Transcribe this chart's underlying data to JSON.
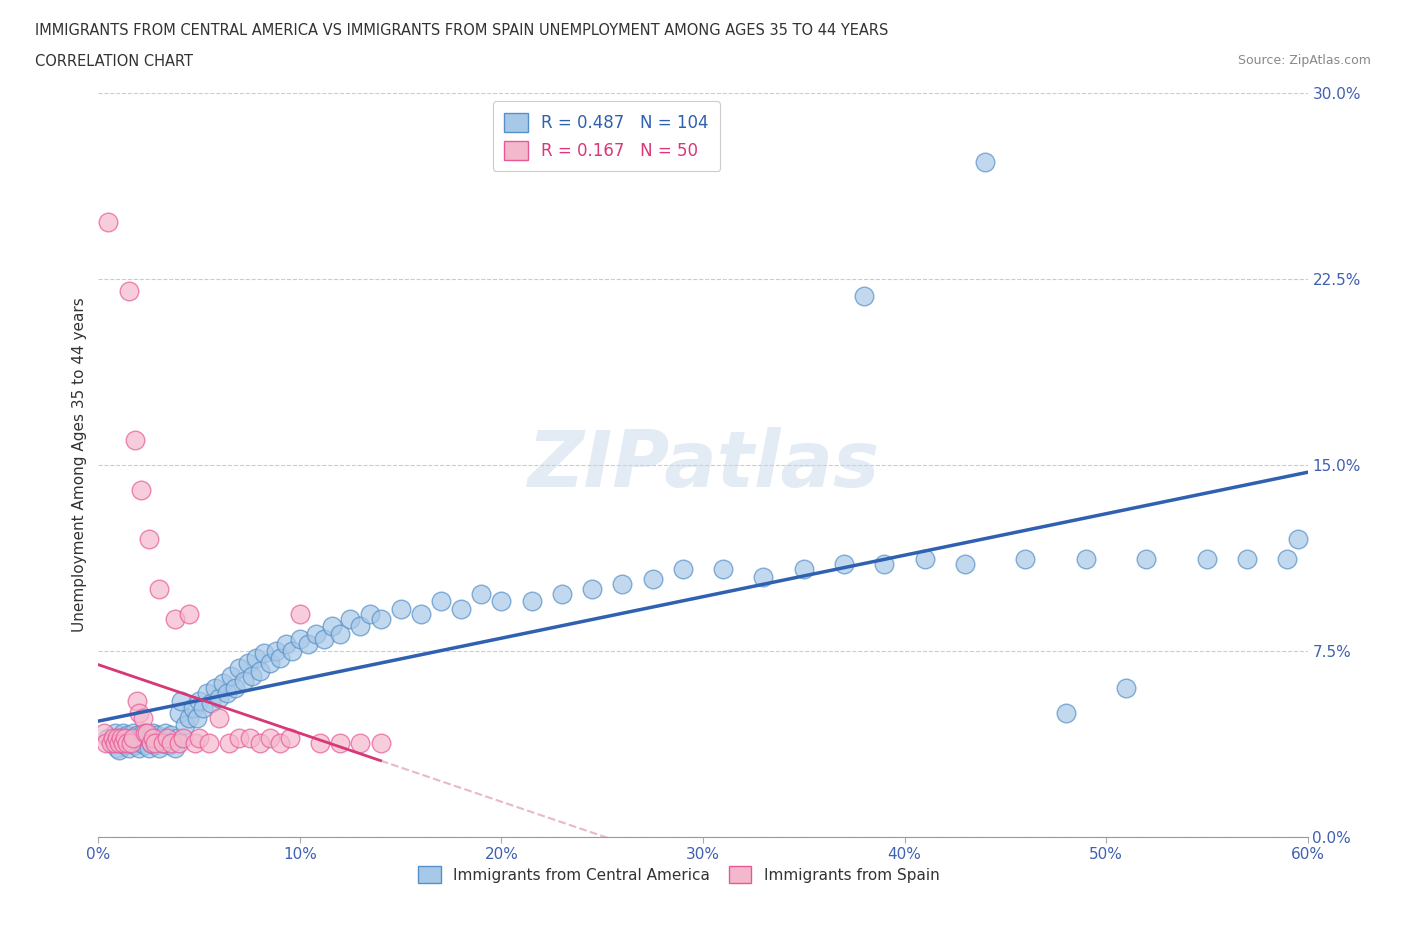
{
  "title_line1": "IMMIGRANTS FROM CENTRAL AMERICA VS IMMIGRANTS FROM SPAIN UNEMPLOYMENT AMONG AGES 35 TO 44 YEARS",
  "title_line2": "CORRELATION CHART",
  "source_text": "Source: ZipAtlas.com",
  "ylabel": "Unemployment Among Ages 35 to 44 years",
  "legend_entry1": "Immigrants from Central America",
  "legend_entry2": "Immigrants from Spain",
  "R1": 0.487,
  "N1": 104,
  "R2": 0.167,
  "N2": 50,
  "color1": "#a8c8e8",
  "color2": "#f4b8cc",
  "edge_color1": "#5590c8",
  "edge_color2": "#e85898",
  "trendline1_color": "#3060b0",
  "trendline2_color": "#d83878",
  "trendline_dashed_color": "#e8b8cc",
  "xlim": [
    0.0,
    0.6
  ],
  "ylim": [
    0.0,
    0.3
  ],
  "xticks": [
    0.0,
    0.1,
    0.2,
    0.3,
    0.4,
    0.5,
    0.6
  ],
  "yticks_right": [
    0.0,
    0.075,
    0.15,
    0.225,
    0.3
  ],
  "watermark": "ZIPatlas",
  "dot_size": 180,
  "blue_x": [
    0.005,
    0.007,
    0.008,
    0.009,
    0.01,
    0.01,
    0.011,
    0.012,
    0.013,
    0.014,
    0.015,
    0.015,
    0.016,
    0.017,
    0.018,
    0.019,
    0.02,
    0.02,
    0.021,
    0.022,
    0.023,
    0.024,
    0.025,
    0.025,
    0.026,
    0.027,
    0.028,
    0.029,
    0.03,
    0.03,
    0.032,
    0.033,
    0.035,
    0.036,
    0.038,
    0.039,
    0.04,
    0.041,
    0.043,
    0.045,
    0.047,
    0.049,
    0.05,
    0.052,
    0.054,
    0.056,
    0.058,
    0.06,
    0.062,
    0.064,
    0.066,
    0.068,
    0.07,
    0.072,
    0.074,
    0.076,
    0.078,
    0.08,
    0.082,
    0.085,
    0.088,
    0.09,
    0.093,
    0.096,
    0.1,
    0.104,
    0.108,
    0.112,
    0.116,
    0.12,
    0.125,
    0.13,
    0.135,
    0.14,
    0.15,
    0.16,
    0.17,
    0.18,
    0.19,
    0.2,
    0.215,
    0.23,
    0.245,
    0.26,
    0.275,
    0.29,
    0.31,
    0.33,
    0.35,
    0.37,
    0.39,
    0.41,
    0.43,
    0.46,
    0.49,
    0.52,
    0.55,
    0.57,
    0.59,
    0.595,
    0.44,
    0.38,
    0.48,
    0.51
  ],
  "blue_y": [
    0.04,
    0.038,
    0.042,
    0.036,
    0.04,
    0.035,
    0.038,
    0.042,
    0.037,
    0.041,
    0.036,
    0.04,
    0.038,
    0.042,
    0.037,
    0.041,
    0.036,
    0.04,
    0.038,
    0.042,
    0.037,
    0.041,
    0.036,
    0.04,
    0.038,
    0.042,
    0.037,
    0.041,
    0.036,
    0.04,
    0.038,
    0.042,
    0.037,
    0.041,
    0.036,
    0.04,
    0.05,
    0.055,
    0.045,
    0.048,
    0.052,
    0.048,
    0.055,
    0.052,
    0.058,
    0.054,
    0.06,
    0.056,
    0.062,
    0.058,
    0.065,
    0.06,
    0.068,
    0.063,
    0.07,
    0.065,
    0.072,
    0.067,
    0.074,
    0.07,
    0.075,
    0.072,
    0.078,
    0.075,
    0.08,
    0.078,
    0.082,
    0.08,
    0.085,
    0.082,
    0.088,
    0.085,
    0.09,
    0.088,
    0.092,
    0.09,
    0.095,
    0.092,
    0.098,
    0.095,
    0.095,
    0.098,
    0.1,
    0.102,
    0.104,
    0.108,
    0.108,
    0.105,
    0.108,
    0.11,
    0.11,
    0.112,
    0.11,
    0.112,
    0.112,
    0.112,
    0.112,
    0.112,
    0.112,
    0.12,
    0.272,
    0.218,
    0.05,
    0.06
  ],
  "pink_x": [
    0.003,
    0.004,
    0.005,
    0.006,
    0.007,
    0.008,
    0.009,
    0.01,
    0.011,
    0.012,
    0.013,
    0.014,
    0.015,
    0.016,
    0.017,
    0.018,
    0.019,
    0.02,
    0.021,
    0.022,
    0.023,
    0.024,
    0.025,
    0.026,
    0.027,
    0.028,
    0.03,
    0.032,
    0.034,
    0.036,
    0.038,
    0.04,
    0.042,
    0.045,
    0.048,
    0.05,
    0.055,
    0.06,
    0.065,
    0.07,
    0.075,
    0.08,
    0.085,
    0.09,
    0.095,
    0.1,
    0.11,
    0.12,
    0.13,
    0.14
  ],
  "pink_y": [
    0.042,
    0.038,
    0.248,
    0.038,
    0.04,
    0.038,
    0.04,
    0.038,
    0.04,
    0.038,
    0.04,
    0.038,
    0.22,
    0.038,
    0.04,
    0.16,
    0.055,
    0.05,
    0.14,
    0.048,
    0.042,
    0.042,
    0.12,
    0.038,
    0.04,
    0.038,
    0.1,
    0.038,
    0.04,
    0.038,
    0.088,
    0.038,
    0.04,
    0.09,
    0.038,
    0.04,
    0.038,
    0.048,
    0.038,
    0.04,
    0.04,
    0.038,
    0.04,
    0.038,
    0.04,
    0.09,
    0.038,
    0.038,
    0.038,
    0.038
  ]
}
